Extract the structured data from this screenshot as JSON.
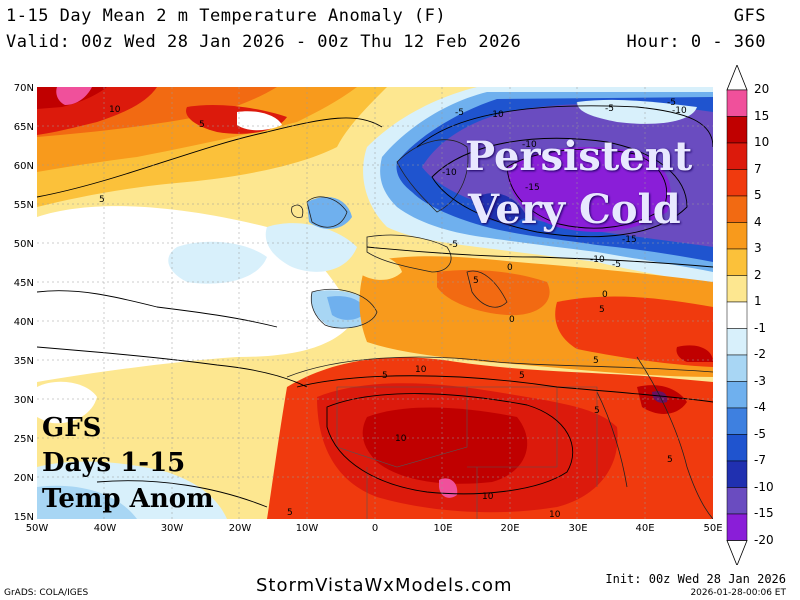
{
  "header": {
    "title_line1": "1-15 Day Mean 2 m Temperature Anomaly (F)",
    "title_line2": "Valid: 00z Wed 28 Jan 2026 - 00z Thu 12 Feb 2026",
    "model": "GFS",
    "hour_range": "Hour: 0 - 360"
  },
  "map": {
    "lat_labels": [
      "70N",
      "65N",
      "60N",
      "55N",
      "50N",
      "45N",
      "40N",
      "35N",
      "30N",
      "25N",
      "20N",
      "15N"
    ],
    "lon_labels": [
      "50W",
      "40W",
      "30W",
      "20W",
      "10W",
      "0",
      "10E",
      "20E",
      "30E",
      "40E",
      "50E"
    ],
    "contour_labels": [
      "10",
      "5",
      "5",
      "-5",
      "-10",
      "-10",
      "-10",
      "-15",
      "-15",
      "-10",
      "-5",
      "-5",
      "-5",
      "-10",
      "-5",
      "0",
      "5",
      "5",
      "5",
      "5",
      "10",
      "10",
      "5",
      "5",
      "10",
      "5",
      "10",
      "0",
      "0",
      "5"
    ],
    "annotation_main_line1": "Persistent",
    "annotation_main_line2": "Very Cold",
    "annotation_box_line1": "GFS",
    "annotation_box_line2": "Days 1-15",
    "annotation_box_line3": "Temp Anom"
  },
  "legend": {
    "levels": [
      "20",
      "15",
      "10",
      "7",
      "5",
      "4",
      "3",
      "2",
      "1",
      "-1",
      "-2",
      "-3",
      "-4",
      "-5",
      "-7",
      "-10",
      "-15",
      "-20"
    ],
    "colors": [
      "#f0509b",
      "#c00000",
      "#dc1a0c",
      "#f03a0e",
      "#f26a12",
      "#f89a1c",
      "#fbc13a",
      "#fde790",
      "#ffffff",
      "#d8f0fb",
      "#a8d6f4",
      "#6fb0ee",
      "#3e80e0",
      "#1f54cf",
      "#2030b0",
      "#6a4cc0",
      "#8a1ed8"
    ]
  },
  "footer": {
    "credit": "GrADS: COLA/IGES",
    "site": "StormVistaWxModels.com",
    "init": "Init: 00z Wed 28 Jan 2026",
    "stamp": "2026-01-28-00:06 ET"
  }
}
